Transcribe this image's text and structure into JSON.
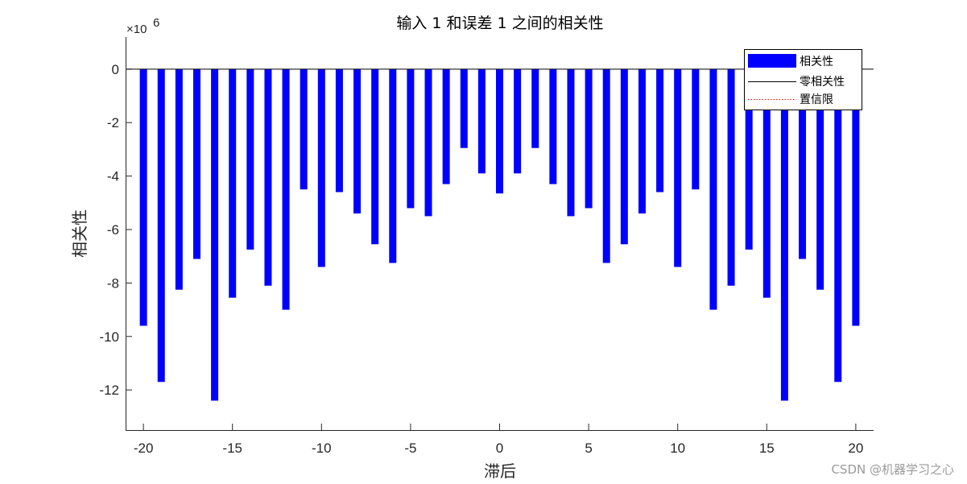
{
  "chart_data": {
    "type": "bar",
    "title": "输入 1 和误差 1  之间的相关性",
    "xlabel": "滞后",
    "ylabel": "相关性",
    "y_exponent_label": "×10",
    "y_exponent_power": "6",
    "xlim": [
      -21,
      21
    ],
    "ylim": [
      -13.5,
      1.2
    ],
    "xticks": [
      -20,
      -15,
      -10,
      -5,
      0,
      5,
      10,
      15,
      20
    ],
    "yticks": [
      -12,
      -10,
      -8,
      -6,
      -4,
      -2,
      0
    ],
    "x": [
      -20,
      -19,
      -18,
      -17,
      -16,
      -15,
      -14,
      -13,
      -12,
      -11,
      -10,
      -9,
      -8,
      -7,
      -6,
      -5,
      -4,
      -3,
      -2,
      -1,
      0,
      1,
      2,
      3,
      4,
      5,
      6,
      7,
      8,
      9,
      10,
      11,
      12,
      13,
      14,
      15,
      16,
      17,
      18,
      19,
      20
    ],
    "values": [
      -9.6,
      -11.7,
      -8.25,
      -7.1,
      -12.4,
      -8.55,
      -6.75,
      -8.1,
      -9.0,
      -4.5,
      -7.4,
      -4.6,
      -5.4,
      -6.55,
      -7.25,
      -5.2,
      -5.5,
      -4.3,
      -2.95,
      -3.9,
      -4.65,
      -3.9,
      -2.95,
      -4.3,
      -5.5,
      -5.2,
      -7.25,
      -6.55,
      -5.4,
      -4.6,
      -7.4,
      -4.5,
      -9.0,
      -8.1,
      -6.75,
      -8.55,
      -12.4,
      -7.1,
      -8.25,
      -11.7,
      -9.6
    ],
    "bar_color": "#0000ff",
    "zero_line_color": "#000000",
    "confidence_color": "#ff0000",
    "grid": false,
    "legend_position": "top-right",
    "legend": [
      "相关性",
      "零相关性",
      "置信限"
    ]
  },
  "watermark": "CSDN @机器学习之心"
}
